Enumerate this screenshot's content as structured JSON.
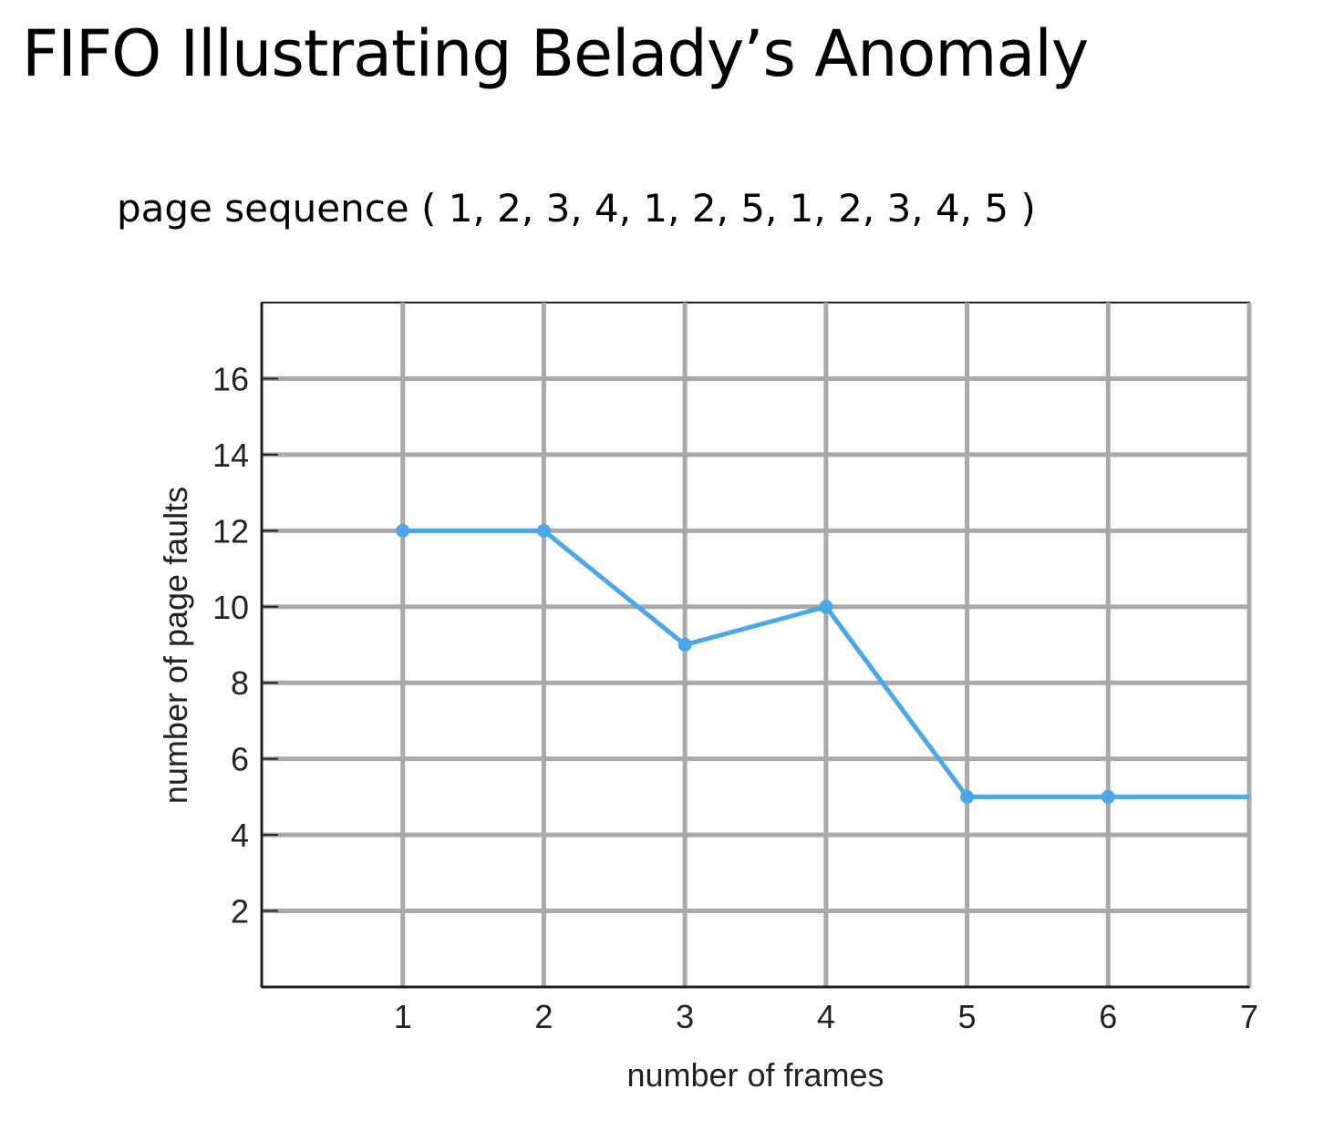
{
  "slide": {
    "title": "FIFO Illustrating Belady’s Anomaly",
    "subtitle": "page sequence ( 1, 2, 3, 4, 1, 2, 5, 1, 2, 3, 4, 5 )"
  },
  "chart_data": {
    "type": "line",
    "title": "",
    "xlabel": "number of frames",
    "ylabel": "number of page faults",
    "xlim": [
      0,
      7
    ],
    "ylim": [
      0,
      18
    ],
    "xticks": [
      1,
      2,
      3,
      4,
      5,
      6,
      7
    ],
    "yticks": [
      2,
      4,
      6,
      8,
      10,
      12,
      14,
      16
    ],
    "grid": true,
    "series": [
      {
        "x": [
          1,
          2,
          3,
          4,
          5,
          6,
          7
        ],
        "y": [
          12,
          12,
          9,
          10,
          5,
          5,
          5
        ],
        "markers": [
          true,
          true,
          true,
          true,
          true,
          true,
          false
        ],
        "color": "#4aa8e8"
      }
    ],
    "grid_color": "#a7a9ac",
    "axis_color": "#231f20"
  }
}
